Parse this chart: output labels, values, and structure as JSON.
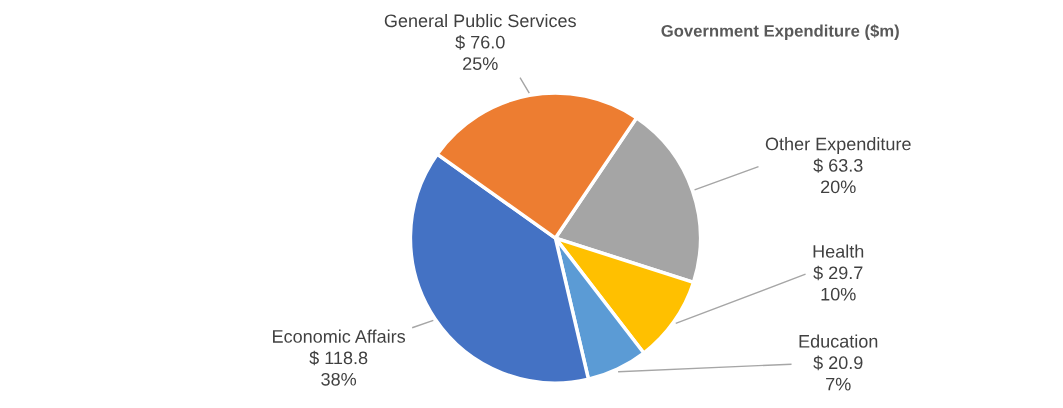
{
  "chart_data": {
    "type": "pie",
    "title": "Government Expenditure ($m)",
    "categories": [
      "Other Expenditure",
      "Health",
      "Education",
      "Economic Affairs",
      "General Public Services"
    ],
    "values": [
      63.3,
      29.7,
      20.9,
      118.8,
      76.0
    ],
    "colors": [
      "#a5a5a5",
      "#ffc000",
      "#5b9bd5",
      "#4472c4",
      "#ed7d31"
    ],
    "value_labels": [
      "$ 63.3\n20%",
      "$ 29.7\n10%",
      "$ 20.9\n7%",
      "$ 118.8\n38%",
      "$ 76.0\n25%"
    ],
    "legend": false
  }
}
